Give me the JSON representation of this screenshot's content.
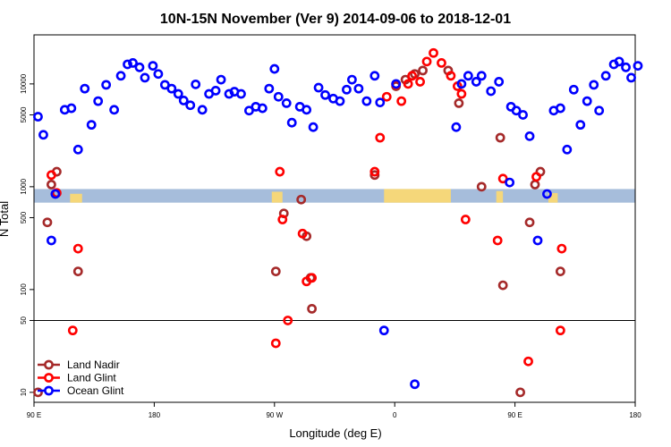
{
  "chart_data": {
    "type": "scatter",
    "title": "10N-15N November (Ver 9)   2014-09-06 to 2018-12-01",
    "xlabel": "Longitude (deg E)",
    "ylabel": "N Total",
    "y_scale": "log",
    "ylim": [
      8,
      30000
    ],
    "reference_line": 50,
    "x_ticks": [
      {
        "value": 0,
        "label": "90 E"
      },
      {
        "value": 90,
        "label": "180"
      },
      {
        "value": 180,
        "label": "90 W"
      },
      {
        "value": 270,
        "label": "0"
      },
      {
        "value": 360,
        "label": "90 E"
      },
      {
        "value": 450,
        "label": "180"
      }
    ],
    "x_range": [
      0,
      450
    ],
    "y_ticks": [
      {
        "value": 10,
        "label": "10"
      },
      {
        "value": 50,
        "label": "50"
      },
      {
        "value": 100,
        "label": "100"
      },
      {
        "value": 500,
        "label": "500"
      },
      {
        "value": 1000,
        "label": "1000"
      },
      {
        "value": 5000,
        "label": "5000"
      },
      {
        "value": 10000,
        "label": "10000"
      }
    ],
    "band": {
      "y_low": 700,
      "y_high": 950,
      "color": "#a6bddb",
      "land_color": "#f5d77a"
    },
    "series": [
      {
        "name": "Land Nadir",
        "color": "#a52a2a",
        "points": [
          [
            3,
            10
          ],
          [
            10,
            450
          ],
          [
            13,
            1050
          ],
          [
            17,
            1400
          ],
          [
            33,
            150
          ],
          [
            181,
            150
          ],
          [
            187,
            550
          ],
          [
            200,
            750
          ],
          [
            204,
            330
          ],
          [
            207,
            130
          ],
          [
            208,
            65
          ],
          [
            255,
            1300
          ],
          [
            271,
            9500
          ],
          [
            278,
            11000
          ],
          [
            285,
            12500
          ],
          [
            291,
            13500
          ],
          [
            310,
            13500
          ],
          [
            318,
            6500
          ],
          [
            335,
            1000
          ],
          [
            349,
            3000
          ],
          [
            351,
            110
          ],
          [
            364,
            10
          ],
          [
            371,
            450
          ],
          [
            375,
            1050
          ],
          [
            379,
            1400
          ],
          [
            394,
            150
          ]
        ]
      },
      {
        "name": "Land Glint",
        "color": "#ff0000",
        "points": [
          [
            13,
            1300
          ],
          [
            17,
            870
          ],
          [
            29,
            40
          ],
          [
            33,
            250
          ],
          [
            181,
            30
          ],
          [
            184,
            1400
          ],
          [
            186,
            480
          ],
          [
            190,
            50
          ],
          [
            201,
            350
          ],
          [
            204,
            120
          ],
          [
            208,
            130
          ],
          [
            255,
            1400
          ],
          [
            259,
            3000
          ],
          [
            264,
            7500
          ],
          [
            271,
            9900
          ],
          [
            275,
            6800
          ],
          [
            280,
            10000
          ],
          [
            283,
            12000
          ],
          [
            289,
            10500
          ],
          [
            294,
            16500
          ],
          [
            299,
            20000
          ],
          [
            305,
            16000
          ],
          [
            312,
            12000
          ],
          [
            317,
            9500
          ],
          [
            320,
            8000
          ],
          [
            323,
            480
          ],
          [
            347,
            300
          ],
          [
            351,
            1200
          ],
          [
            370,
            20
          ],
          [
            376,
            1250
          ],
          [
            394,
            40
          ],
          [
            395,
            250
          ]
        ]
      },
      {
        "name": "Ocean Glint",
        "color": "#0000ff",
        "points": [
          [
            3,
            4800
          ],
          [
            7,
            3200
          ],
          [
            13,
            300
          ],
          [
            16,
            850
          ],
          [
            23,
            5600
          ],
          [
            28,
            5800
          ],
          [
            33,
            2300
          ],
          [
            38,
            9000
          ],
          [
            43,
            4000
          ],
          [
            48,
            6800
          ],
          [
            54,
            9800
          ],
          [
            60,
            5600
          ],
          [
            65,
            12000
          ],
          [
            70,
            15500
          ],
          [
            74,
            16000
          ],
          [
            79,
            14500
          ],
          [
            83,
            11500
          ],
          [
            89,
            15000
          ],
          [
            93,
            12500
          ],
          [
            98,
            9800
          ],
          [
            103,
            9000
          ],
          [
            108,
            8000
          ],
          [
            112,
            6900
          ],
          [
            117,
            6200
          ],
          [
            121,
            9900
          ],
          [
            126,
            5600
          ],
          [
            131,
            8000
          ],
          [
            136,
            8600
          ],
          [
            140,
            11000
          ],
          [
            146,
            8000
          ],
          [
            150,
            8400
          ],
          [
            155,
            8000
          ],
          [
            161,
            5500
          ],
          [
            166,
            6000
          ],
          [
            171,
            5800
          ],
          [
            176,
            9000
          ],
          [
            180,
            14000
          ],
          [
            183,
            7500
          ],
          [
            189,
            6500
          ],
          [
            193,
            4200
          ],
          [
            199,
            6000
          ],
          [
            204,
            5600
          ],
          [
            209,
            3800
          ],
          [
            213,
            9200
          ],
          [
            218,
            7800
          ],
          [
            224,
            7200
          ],
          [
            229,
            6800
          ],
          [
            234,
            8800
          ],
          [
            238,
            11000
          ],
          [
            243,
            9000
          ],
          [
            249,
            6800
          ],
          [
            255,
            12000
          ],
          [
            259,
            6600
          ],
          [
            262,
            40
          ],
          [
            271,
            10000
          ],
          [
            285,
            12
          ],
          [
            316,
            3800
          ],
          [
            320,
            10000
          ],
          [
            325,
            12000
          ],
          [
            331,
            10500
          ],
          [
            335,
            12000
          ],
          [
            342,
            8500
          ],
          [
            348,
            10500
          ],
          [
            356,
            1100
          ],
          [
            357,
            6000
          ],
          [
            361,
            5500
          ],
          [
            366,
            5000
          ],
          [
            371,
            3100
          ],
          [
            377,
            300
          ],
          [
            384,
            850
          ],
          [
            389,
            5500
          ],
          [
            394,
            5800
          ],
          [
            399,
            2300
          ],
          [
            404,
            8800
          ],
          [
            409,
            4000
          ],
          [
            414,
            6800
          ],
          [
            419,
            9800
          ],
          [
            423,
            5500
          ],
          [
            428,
            12000
          ],
          [
            434,
            15500
          ],
          [
            438,
            16500
          ],
          [
            443,
            14500
          ],
          [
            447,
            11500
          ],
          [
            452,
            15000
          ]
        ]
      }
    ],
    "legend": {
      "position": "bottom-left",
      "entries": [
        "Land Nadir",
        "Land Glint",
        "Ocean Glint"
      ]
    }
  }
}
